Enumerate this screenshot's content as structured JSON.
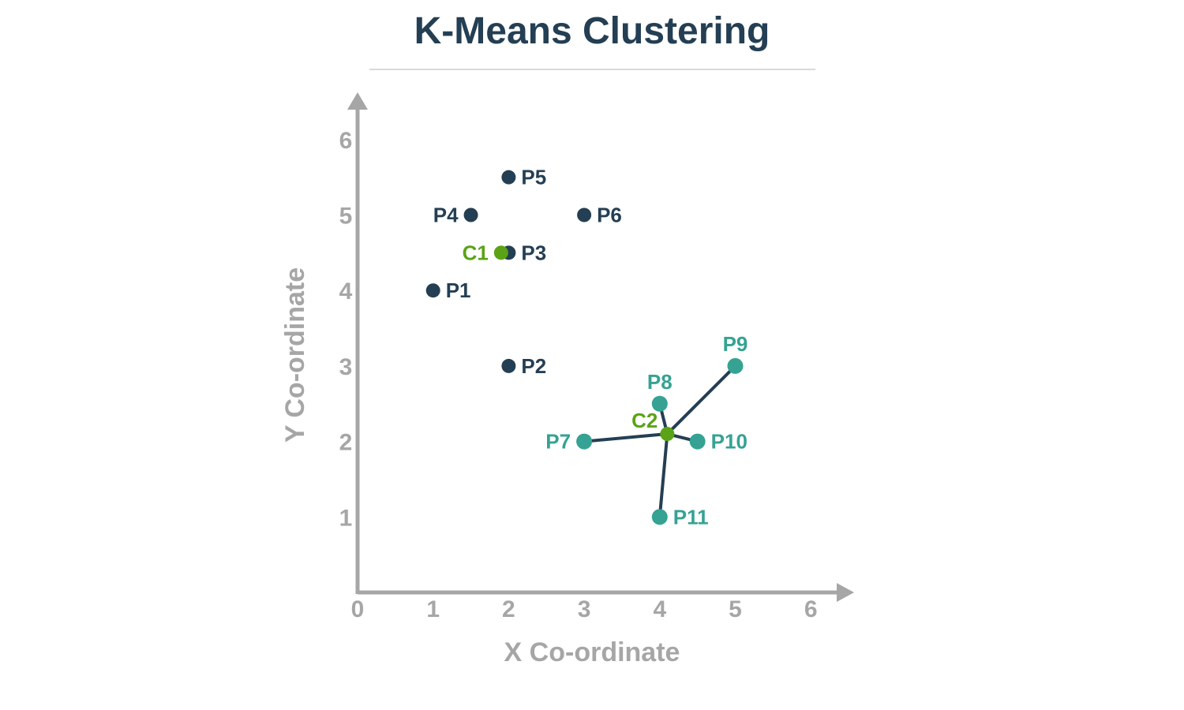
{
  "chart_data": {
    "type": "scatter",
    "title": "K-Means Clustering",
    "xlabel": "X Co-ordinate",
    "ylabel": "Y Co-ordinate",
    "xlim": [
      0,
      6.4
    ],
    "ylim": [
      0,
      6.6
    ],
    "x_ticks": [
      "0",
      "1",
      "2",
      "3",
      "4",
      "5",
      "6"
    ],
    "y_ticks": [
      "1",
      "2",
      "3",
      "4",
      "5",
      "6"
    ],
    "grid": false,
    "colors": {
      "axis": "#a6a6a6",
      "cluster_1": "#243f54",
      "cluster_2": "#35a293",
      "centroid": "#5aa317",
      "link": "#243f54"
    },
    "series": [
      {
        "points": [
          {
            "label": "P1",
            "x": 1,
            "y": 4
          },
          {
            "label": "P2",
            "x": 2,
            "y": 3
          },
          {
            "label": "P3",
            "x": 2,
            "y": 4.5
          },
          {
            "label": "P4",
            "x": 1.5,
            "y": 5
          },
          {
            "label": "P5",
            "x": 2,
            "y": 5.5
          },
          {
            "label": "P6",
            "x": 3,
            "y": 5
          }
        ]
      },
      {
        "points": [
          {
            "label": "P7",
            "x": 3,
            "y": 2
          },
          {
            "label": "P8",
            "x": 4,
            "y": 2.5
          },
          {
            "label": "P9",
            "x": 5,
            "y": 3
          },
          {
            "label": "P10",
            "x": 4.5,
            "y": 2
          },
          {
            "label": "P11",
            "x": 4,
            "y": 1
          }
        ]
      }
    ],
    "centroids": [
      {
        "label": "C1",
        "x": 1.9,
        "y": 4.5
      },
      {
        "label": "C2",
        "x": 4.1,
        "y": 2.1
      }
    ],
    "links": [
      {
        "from": "C2",
        "to": "P7"
      },
      {
        "from": "C2",
        "to": "P8"
      },
      {
        "from": "C2",
        "to": "P9"
      },
      {
        "from": "C2",
        "to": "P10"
      },
      {
        "from": "C2",
        "to": "P11"
      }
    ]
  }
}
